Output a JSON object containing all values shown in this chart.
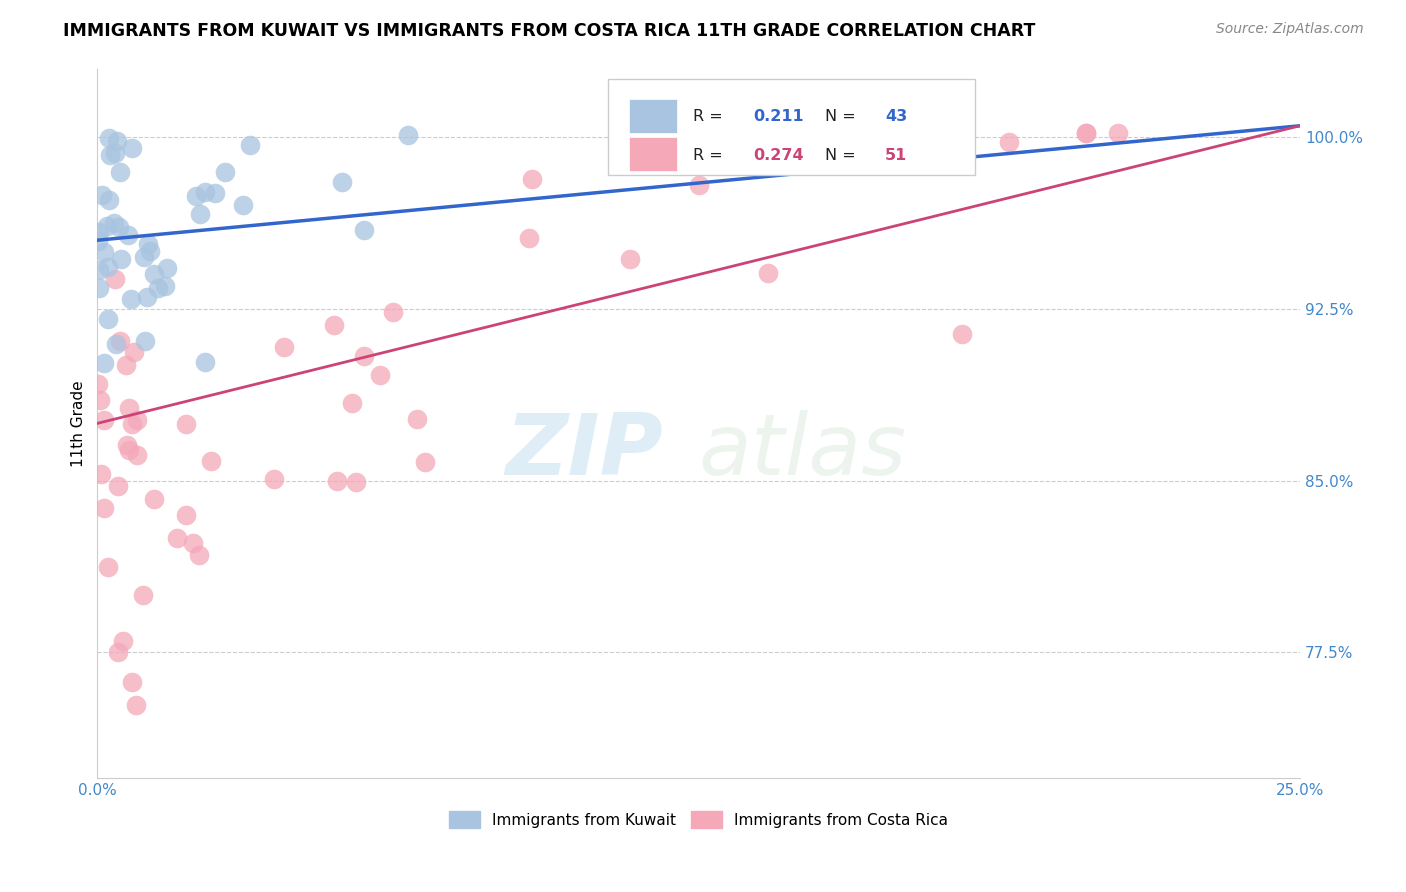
{
  "title": "IMMIGRANTS FROM KUWAIT VS IMMIGRANTS FROM COSTA RICA 11TH GRADE CORRELATION CHART",
  "source": "Source: ZipAtlas.com",
  "ylabel": "11th Grade",
  "xlim": [
    0.0,
    0.25
  ],
  "ylim": [
    0.72,
    1.03
  ],
  "xticks": [
    0.0,
    0.05,
    0.1,
    0.15,
    0.2,
    0.25
  ],
  "xticklabels": [
    "0.0%",
    "",
    "",
    "",
    "",
    "25.0%"
  ],
  "yticks": [
    0.775,
    0.85,
    0.925,
    1.0
  ],
  "yticklabels": [
    "77.5%",
    "85.0%",
    "92.5%",
    "100.0%"
  ],
  "kuwait_R": 0.211,
  "kuwait_N": 43,
  "costarica_R": 0.274,
  "costarica_N": 51,
  "kuwait_color": "#a8c4e0",
  "costarica_color": "#f4a8b8",
  "kuwait_line_color": "#3366cc",
  "costarica_line_color": "#cc4477",
  "legend_label_kuwait": "Immigrants from Kuwait",
  "legend_label_costarica": "Immigrants from Costa Rica",
  "watermark_zip": "ZIP",
  "watermark_atlas": "atlas",
  "kuwait_line_x0": 0.0,
  "kuwait_line_y0": 0.955,
  "kuwait_line_x1": 0.25,
  "kuwait_line_y1": 1.005,
  "costarica_line_x0": 0.0,
  "costarica_line_y0": 0.875,
  "costarica_line_x1": 0.25,
  "costarica_line_y1": 1.005
}
